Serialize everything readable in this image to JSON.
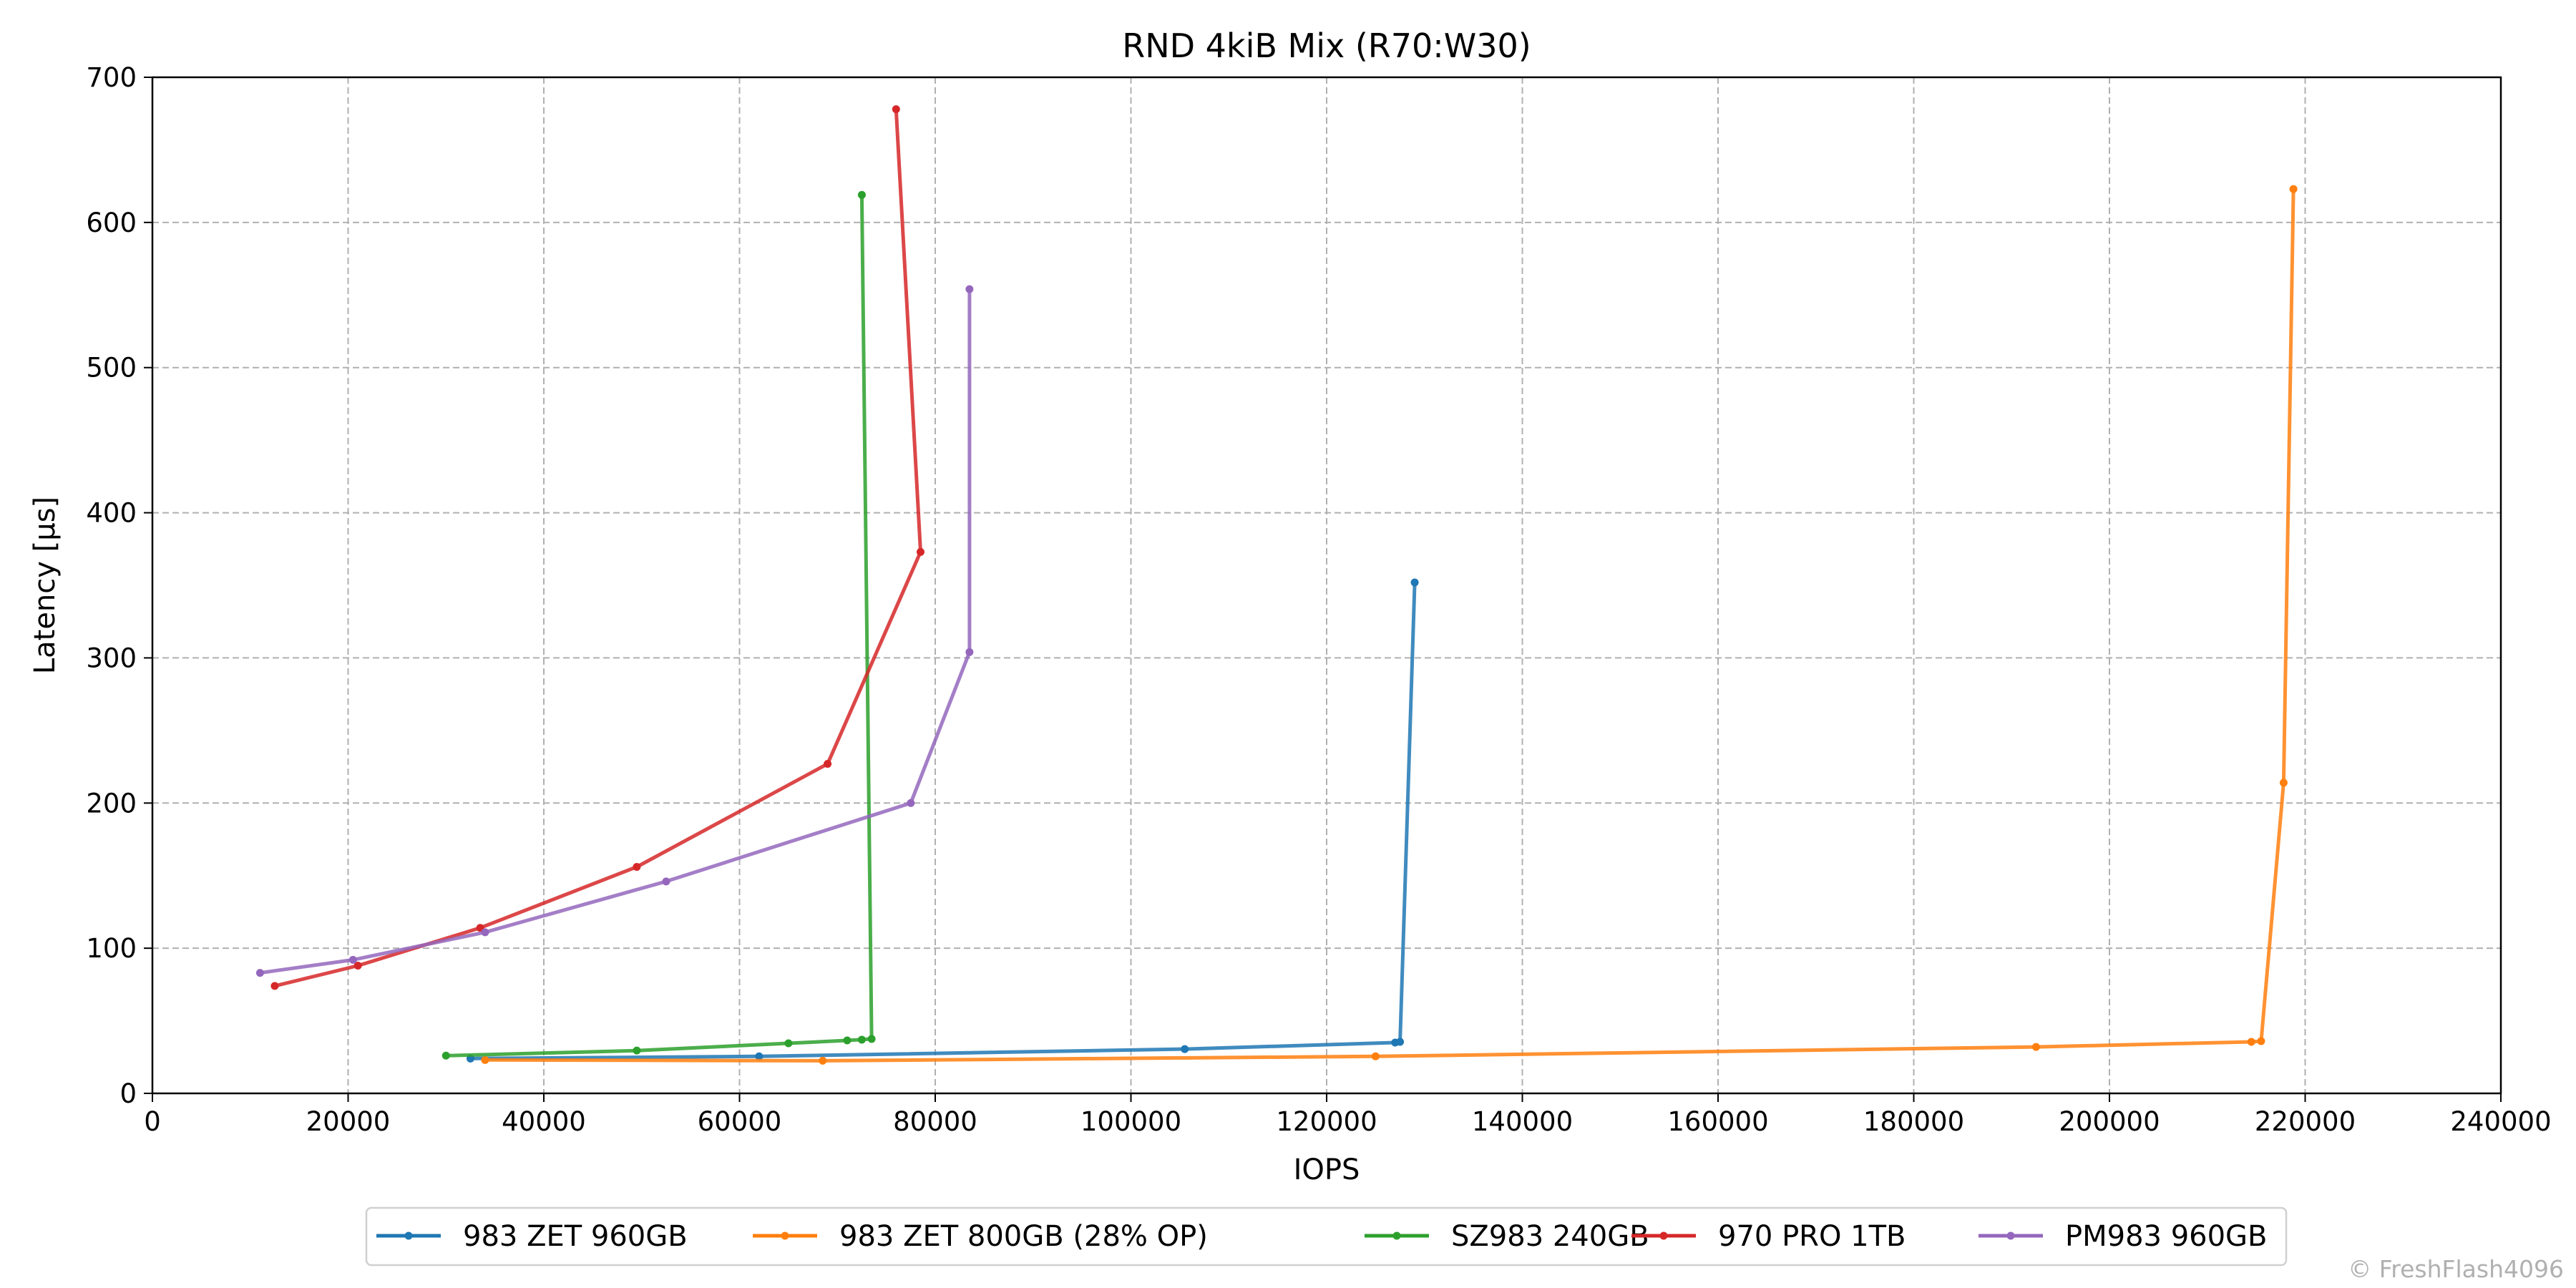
{
  "chart_data": {
    "type": "line",
    "title": "RND 4kiB Mix (R70:W30)",
    "xlabel": "IOPS",
    "ylabel": "Latency [µs]",
    "xlim": [
      0,
      240000
    ],
    "ylim": [
      0,
      700
    ],
    "xticks": [
      0,
      20000,
      40000,
      60000,
      80000,
      100000,
      120000,
      140000,
      160000,
      180000,
      200000,
      220000,
      240000
    ],
    "yticks": [
      0,
      100,
      200,
      300,
      400,
      500,
      600,
      700
    ],
    "grid": true,
    "legend_position": "bottom-center",
    "series": [
      {
        "name": "983 ZET 960GB",
        "color": "#1f77b4",
        "points": [
          [
            32500,
            24
          ],
          [
            62000,
            25.5
          ],
          [
            105500,
            30.5
          ],
          [
            127000,
            35
          ],
          [
            127500,
            35.5
          ],
          [
            129000,
            352
          ]
        ]
      },
      {
        "name": "983 ZET 800GB (28% OP)",
        "color": "#ff7f0e",
        "points": [
          [
            34000,
            23
          ],
          [
            68500,
            22.5
          ],
          [
            125000,
            25.5
          ],
          [
            192500,
            32
          ],
          [
            214500,
            35.5
          ],
          [
            215500,
            36
          ],
          [
            217800,
            214
          ],
          [
            218800,
            623
          ]
        ]
      },
      {
        "name": "SZ983 240GB",
        "color": "#2ca02c",
        "points": [
          [
            30000,
            26
          ],
          [
            49500,
            29.5
          ],
          [
            65000,
            34.5
          ],
          [
            71000,
            36.5
          ],
          [
            72500,
            37
          ],
          [
            73500,
            37.5
          ],
          [
            72500,
            619
          ]
        ]
      },
      {
        "name": "970 PRO 1TB",
        "color": "#d62728",
        "points": [
          [
            12500,
            74
          ],
          [
            21000,
            88
          ],
          [
            33500,
            114
          ],
          [
            49500,
            156
          ],
          [
            69000,
            227
          ],
          [
            78500,
            373
          ],
          [
            76000,
            678
          ]
        ]
      },
      {
        "name": "PM983 960GB",
        "color": "#9467bd",
        "points": [
          [
            11000,
            83
          ],
          [
            20500,
            92
          ],
          [
            34000,
            111
          ],
          [
            52500,
            146
          ],
          [
            77500,
            200
          ],
          [
            83500,
            304
          ],
          [
            83500,
            554
          ]
        ]
      }
    ]
  },
  "watermark": "© FreshFlash4096"
}
